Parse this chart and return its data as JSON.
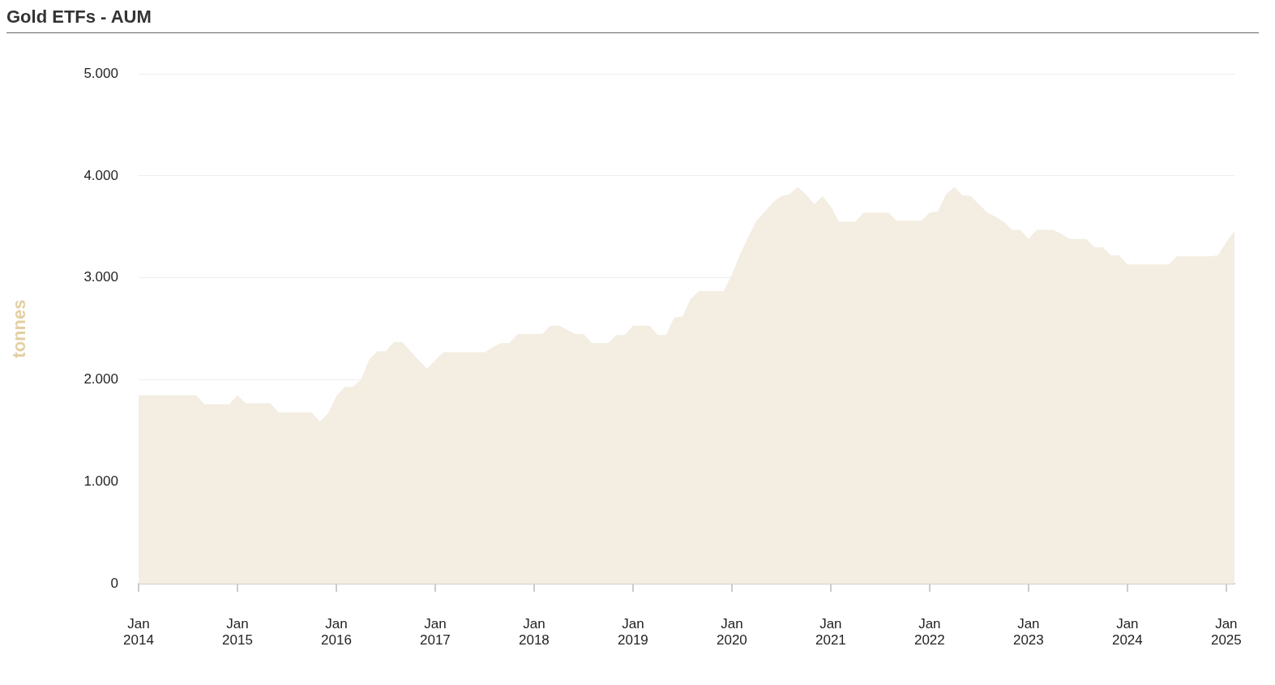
{
  "chart_data": {
    "type": "area",
    "title": "Gold ETFs - AUM",
    "ylabel": "tonnes",
    "categories": [
      "Jan 2014",
      null,
      null,
      null,
      null,
      null,
      null,
      null,
      null,
      null,
      null,
      null,
      "Jan 2015",
      null,
      null,
      null,
      null,
      null,
      null,
      null,
      null,
      null,
      null,
      null,
      "Jan 2016",
      null,
      null,
      null,
      null,
      null,
      null,
      null,
      null,
      null,
      null,
      null,
      "Jan 2017",
      null,
      null,
      null,
      null,
      null,
      null,
      null,
      null,
      null,
      null,
      null,
      "Jan 2018",
      null,
      null,
      null,
      null,
      null,
      null,
      null,
      null,
      null,
      null,
      null,
      "Jan 2019",
      null,
      null,
      null,
      null,
      null,
      null,
      null,
      null,
      null,
      null,
      null,
      "Jan 2020",
      null,
      null,
      null,
      null,
      null,
      null,
      null,
      null,
      null,
      null,
      null,
      "Jan 2021",
      null,
      null,
      null,
      null,
      null,
      null,
      null,
      null,
      null,
      null,
      null,
      "Jan 2022",
      null,
      null,
      null,
      null,
      null,
      null,
      null,
      null,
      null,
      null,
      null,
      "Jan 2023",
      null,
      null,
      null,
      null,
      null,
      null,
      null,
      null,
      null,
      null,
      null,
      "Jan 2024",
      null,
      null,
      null,
      null,
      null,
      null,
      null,
      null,
      null,
      null,
      null,
      "Jan 2025",
      null
    ],
    "series": [
      {
        "color": "#f3ede2",
        "values": [
          1850,
          1850,
          1850,
          1850,
          1850,
          1850,
          1850,
          1850,
          1760,
          1760,
          1760,
          1760,
          1850,
          1770,
          1770,
          1770,
          1770,
          1680,
          1680,
          1680,
          1680,
          1680,
          1590,
          1670,
          1840,
          1930,
          1930,
          2000,
          2200,
          2280,
          2280,
          2370,
          2370,
          2280,
          2190,
          2110,
          2190,
          2270,
          2270,
          2270,
          2270,
          2270,
          2270,
          2320,
          2360,
          2360,
          2450,
          2450,
          2450,
          2450,
          2530,
          2530,
          2490,
          2450,
          2450,
          2360,
          2360,
          2360,
          2440,
          2440,
          2530,
          2530,
          2530,
          2440,
          2440,
          2610,
          2620,
          2790,
          2870,
          2870,
          2870,
          2870,
          3030,
          3230,
          3400,
          3560,
          3650,
          3740,
          3800,
          3820,
          3890,
          3820,
          3720,
          3800,
          3700,
          3550,
          3550,
          3550,
          3640,
          3640,
          3640,
          3640,
          3560,
          3560,
          3560,
          3560,
          3640,
          3650,
          3820,
          3890,
          3810,
          3800,
          3720,
          3640,
          3600,
          3550,
          3470,
          3470,
          3380,
          3470,
          3470,
          3470,
          3430,
          3380,
          3380,
          3380,
          3300,
          3300,
          3220,
          3220,
          3130,
          3130,
          3130,
          3130,
          3130,
          3130,
          3210,
          3210,
          3210,
          3210,
          3210,
          3220,
          3350,
          3460
        ]
      }
    ],
    "ylim": [
      0,
      5000
    ],
    "yticks": [
      {
        "value": 0,
        "label": "0"
      },
      {
        "value": 1000,
        "label": "1.000"
      },
      {
        "value": 2000,
        "label": "2.000"
      },
      {
        "value": 3000,
        "label": "3.000"
      },
      {
        "value": 4000,
        "label": "4.000"
      },
      {
        "value": 5000,
        "label": "5.000"
      }
    ],
    "grid": "y"
  }
}
